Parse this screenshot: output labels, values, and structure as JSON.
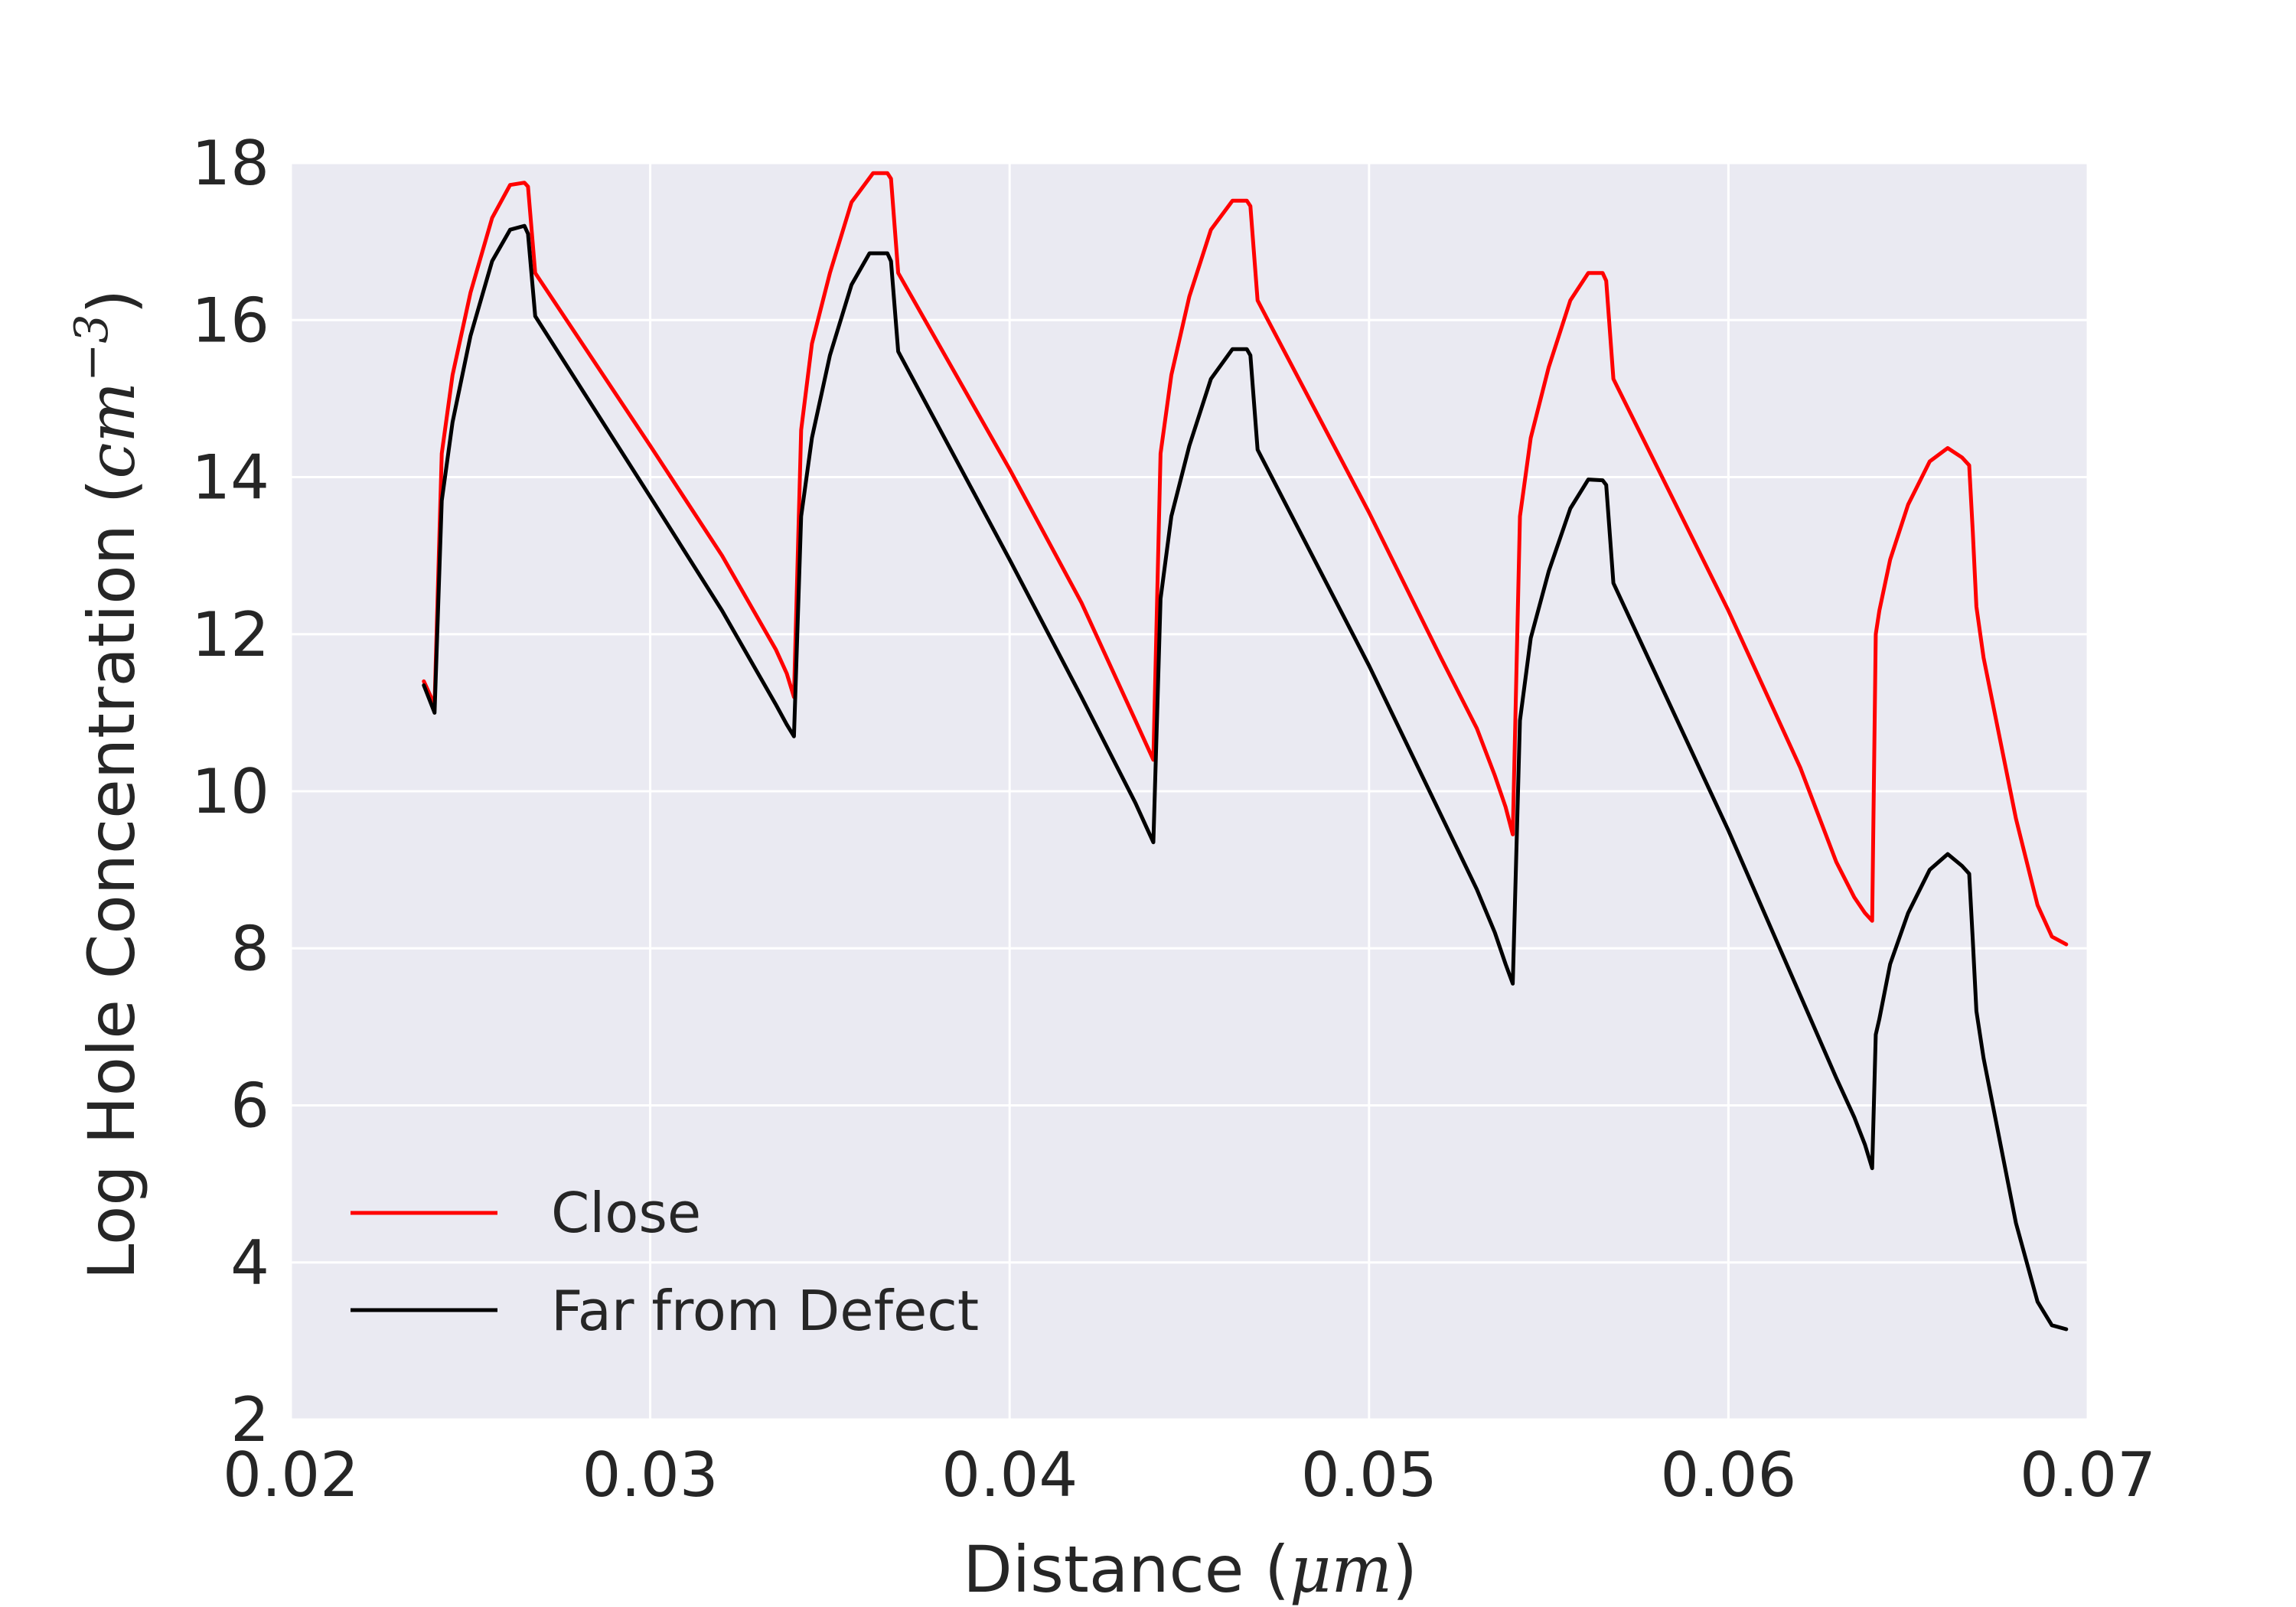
{
  "chart_data": {
    "type": "line",
    "xlabel": {
      "prefix": "Distance (",
      "math": "μm",
      "suffix": ")"
    },
    "ylabel": {
      "prefix": "Log Hole Concentration (",
      "math": "cm",
      "superscript": "−3",
      "suffix": ")"
    },
    "xlim": [
      0.02,
      0.07
    ],
    "ylim": [
      2,
      18
    ],
    "x_ticks": [
      0.02,
      0.03,
      0.04,
      0.05,
      0.06,
      0.07
    ],
    "x_tick_labels": [
      "0.02",
      "0.03",
      "0.04",
      "0.05",
      "0.06",
      "0.07"
    ],
    "y_ticks": [
      2,
      4,
      6,
      8,
      10,
      12,
      14,
      16,
      18
    ],
    "y_tick_labels": [
      "2",
      "4",
      "6",
      "8",
      "10",
      "12",
      "14",
      "16",
      "18"
    ],
    "grid": true,
    "legend_position": "lower-left",
    "series": [
      {
        "name": "Close",
        "color": "#ff0000",
        "points": [
          [
            0.0237,
            11.4
          ],
          [
            0.024,
            11.1
          ],
          [
            0.0242,
            14.3
          ],
          [
            0.0245,
            15.3
          ],
          [
            0.025,
            16.35
          ],
          [
            0.0256,
            17.3
          ],
          [
            0.0261,
            17.72
          ],
          [
            0.0265,
            17.75
          ],
          [
            0.0266,
            17.7
          ],
          [
            0.0268,
            16.6
          ],
          [
            0.03,
            14.4
          ],
          [
            0.032,
            13.0
          ],
          [
            0.033,
            12.2
          ],
          [
            0.0335,
            11.8
          ],
          [
            0.0338,
            11.5
          ],
          [
            0.034,
            11.2
          ],
          [
            0.0342,
            14.6
          ],
          [
            0.0345,
            15.7
          ],
          [
            0.035,
            16.6
          ],
          [
            0.0356,
            17.5
          ],
          [
            0.0362,
            17.87
          ],
          [
            0.0366,
            17.87
          ],
          [
            0.0367,
            17.8
          ],
          [
            0.0369,
            16.6
          ],
          [
            0.04,
            14.1
          ],
          [
            0.042,
            12.4
          ],
          [
            0.043,
            11.4
          ],
          [
            0.0435,
            10.9
          ],
          [
            0.0438,
            10.6
          ],
          [
            0.044,
            10.4
          ],
          [
            0.0442,
            14.3
          ],
          [
            0.0445,
            15.3
          ],
          [
            0.045,
            16.3
          ],
          [
            0.0456,
            17.15
          ],
          [
            0.0462,
            17.52
          ],
          [
            0.0466,
            17.52
          ],
          [
            0.0467,
            17.45
          ],
          [
            0.0469,
            16.25
          ],
          [
            0.05,
            13.55
          ],
          [
            0.052,
            11.7
          ],
          [
            0.053,
            10.8
          ],
          [
            0.0535,
            10.2
          ],
          [
            0.0538,
            9.8
          ],
          [
            0.054,
            9.45
          ],
          [
            0.0542,
            13.5
          ],
          [
            0.0545,
            14.5
          ],
          [
            0.055,
            15.4
          ],
          [
            0.0556,
            16.25
          ],
          [
            0.0561,
            16.6
          ],
          [
            0.0565,
            16.6
          ],
          [
            0.0566,
            16.5
          ],
          [
            0.0568,
            15.25
          ],
          [
            0.06,
            12.3
          ],
          [
            0.062,
            10.3
          ],
          [
            0.063,
            9.1
          ],
          [
            0.0635,
            8.65
          ],
          [
            0.0638,
            8.45
          ],
          [
            0.064,
            8.35
          ],
          [
            0.0641,
            12.0
          ],
          [
            0.0642,
            12.3
          ],
          [
            0.0645,
            12.95
          ],
          [
            0.065,
            13.65
          ],
          [
            0.0656,
            14.2
          ],
          [
            0.0661,
            14.37
          ],
          [
            0.0665,
            14.25
          ],
          [
            0.0667,
            14.15
          ],
          [
            0.0668,
            13.3
          ],
          [
            0.0669,
            12.35
          ],
          [
            0.0671,
            11.7
          ],
          [
            0.068,
            9.65
          ],
          [
            0.0686,
            8.55
          ],
          [
            0.069,
            8.15
          ],
          [
            0.0694,
            8.05
          ]
        ]
      },
      {
        "name": "Far from Defect",
        "color": "#000000",
        "points": [
          [
            0.0237,
            11.35
          ],
          [
            0.024,
            11.0
          ],
          [
            0.0242,
            13.7
          ],
          [
            0.0245,
            14.7
          ],
          [
            0.025,
            15.8
          ],
          [
            0.0256,
            16.75
          ],
          [
            0.0261,
            17.15
          ],
          [
            0.0265,
            17.2
          ],
          [
            0.0266,
            17.1
          ],
          [
            0.0268,
            16.05
          ],
          [
            0.03,
            13.75
          ],
          [
            0.032,
            12.3
          ],
          [
            0.033,
            11.5
          ],
          [
            0.0335,
            11.1
          ],
          [
            0.0338,
            10.85
          ],
          [
            0.034,
            10.7
          ],
          [
            0.0342,
            13.5
          ],
          [
            0.0345,
            14.5
          ],
          [
            0.035,
            15.55
          ],
          [
            0.0356,
            16.45
          ],
          [
            0.0361,
            16.85
          ],
          [
            0.0366,
            16.85
          ],
          [
            0.0367,
            16.75
          ],
          [
            0.0369,
            15.6
          ],
          [
            0.04,
            12.95
          ],
          [
            0.042,
            11.2
          ],
          [
            0.043,
            10.3
          ],
          [
            0.0435,
            9.85
          ],
          [
            0.0438,
            9.55
          ],
          [
            0.044,
            9.35
          ],
          [
            0.0442,
            12.45
          ],
          [
            0.0445,
            13.5
          ],
          [
            0.045,
            14.4
          ],
          [
            0.0456,
            15.25
          ],
          [
            0.0462,
            15.63
          ],
          [
            0.0466,
            15.63
          ],
          [
            0.0467,
            15.55
          ],
          [
            0.0469,
            14.35
          ],
          [
            0.05,
            11.6
          ],
          [
            0.052,
            9.7
          ],
          [
            0.053,
            8.75
          ],
          [
            0.0535,
            8.2
          ],
          [
            0.0538,
            7.8
          ],
          [
            0.054,
            7.55
          ],
          [
            0.0542,
            10.9
          ],
          [
            0.0545,
            11.95
          ],
          [
            0.055,
            12.8
          ],
          [
            0.0556,
            13.6
          ],
          [
            0.0561,
            13.97
          ],
          [
            0.0565,
            13.96
          ],
          [
            0.0566,
            13.9
          ],
          [
            0.0568,
            12.65
          ],
          [
            0.06,
            9.5
          ],
          [
            0.062,
            7.4
          ],
          [
            0.063,
            6.35
          ],
          [
            0.0635,
            5.85
          ],
          [
            0.0638,
            5.5
          ],
          [
            0.064,
            5.2
          ],
          [
            0.0641,
            6.9
          ],
          [
            0.0642,
            7.1
          ],
          [
            0.0645,
            7.8
          ],
          [
            0.065,
            8.45
          ],
          [
            0.0656,
            9.0
          ],
          [
            0.0661,
            9.2
          ],
          [
            0.0665,
            9.05
          ],
          [
            0.0667,
            8.95
          ],
          [
            0.0668,
            8.1
          ],
          [
            0.0669,
            7.2
          ],
          [
            0.0671,
            6.6
          ],
          [
            0.068,
            4.5
          ],
          [
            0.0686,
            3.5
          ],
          [
            0.069,
            3.2
          ],
          [
            0.0694,
            3.15
          ]
        ]
      }
    ]
  }
}
